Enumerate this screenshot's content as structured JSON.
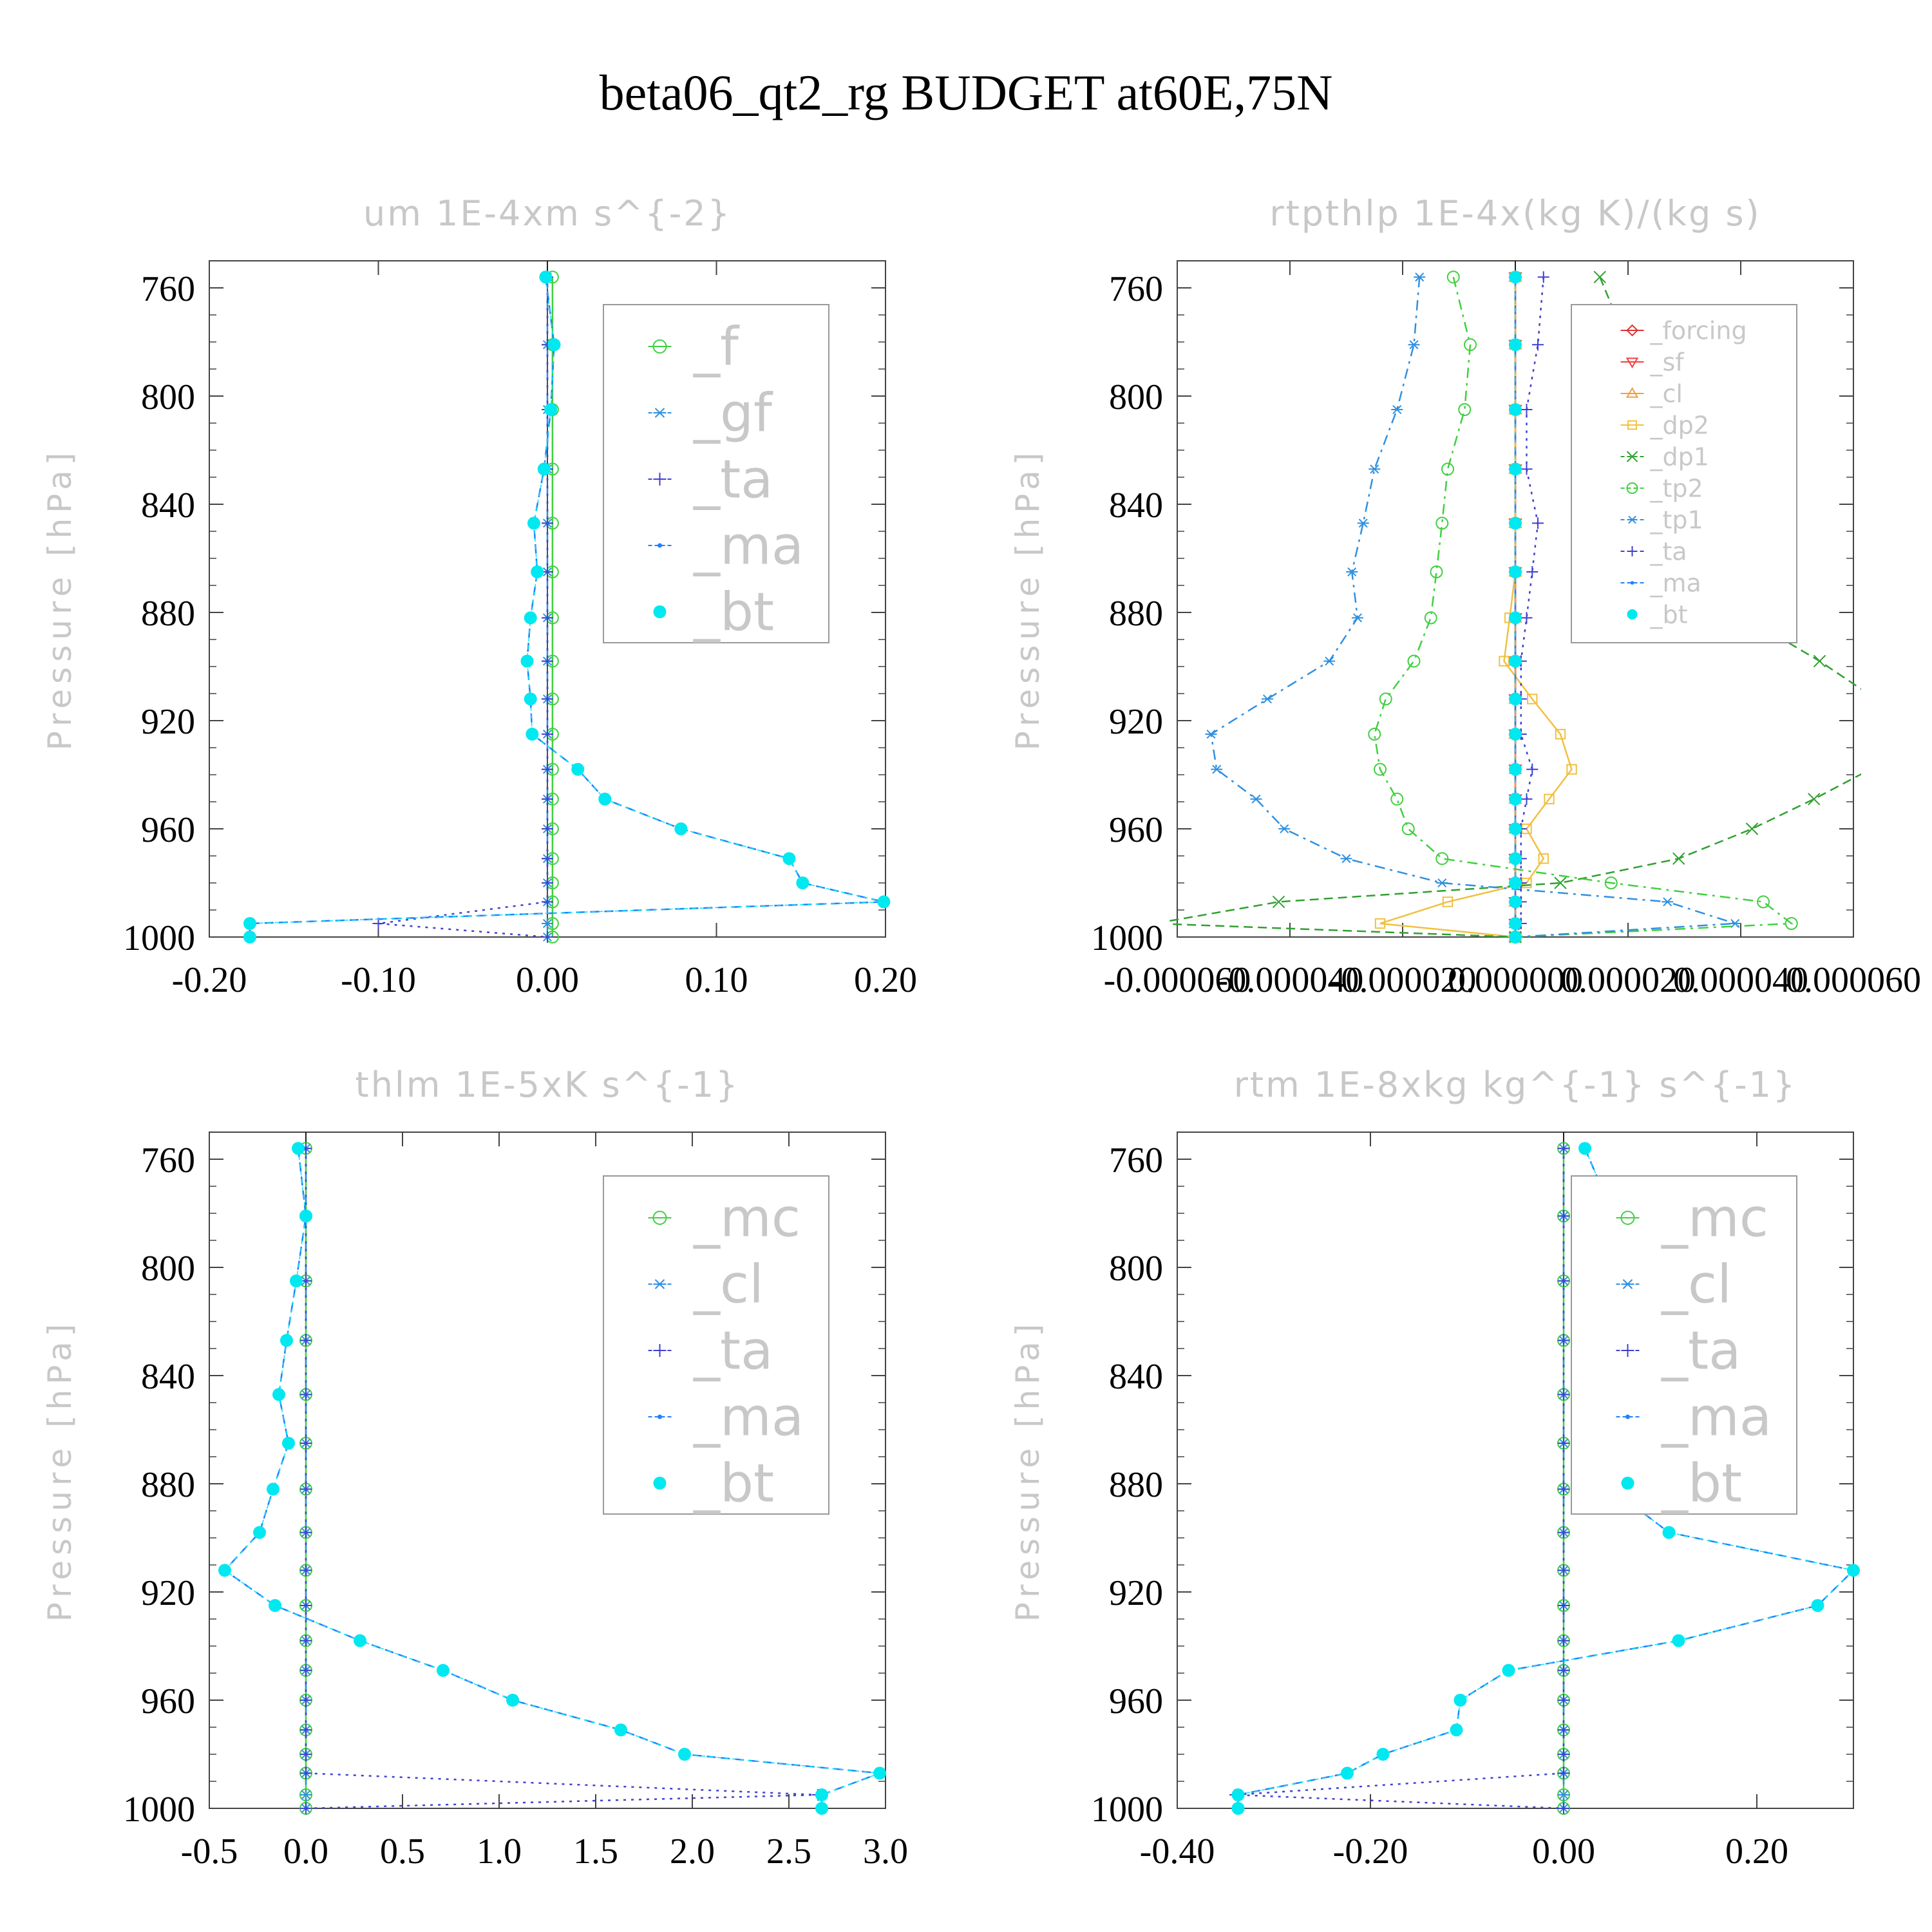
{
  "title": "beta06_qt2_rg  BUDGET at60E,75N",
  "chart_data": [
    {
      "type": "line",
      "title": "um  1E-4xm s^{-2}",
      "ylabel": "Pressure [hPa]",
      "yreversed": true,
      "ylim": [
        750,
        1000
      ],
      "yticks": [
        "760",
        "800",
        "840",
        "880",
        "920",
        "960",
        "1000"
      ],
      "xlim": [
        -0.2,
        0.2
      ],
      "xticks": [
        "-0.20",
        "-0.10",
        "0.00",
        "0.10",
        "0.20"
      ],
      "zero_line": true,
      "legend_position": "top-right",
      "legend_size": "large",
      "pressure": [
        756,
        781,
        805,
        827,
        847,
        865,
        882,
        898,
        912,
        925,
        938,
        949,
        960,
        971,
        980,
        987,
        995,
        1000
      ],
      "series": [
        {
          "name": "_f",
          "color": "#40d040",
          "marker": "circle-open",
          "dash": "solid",
          "values": [
            0.003,
            0.003,
            0.003,
            0.003,
            0.003,
            0.003,
            0.003,
            0.003,
            0.003,
            0.003,
            0.003,
            0.003,
            0.003,
            0.003,
            0.003,
            0.003,
            0.003,
            0.003
          ]
        },
        {
          "name": "_gf",
          "color": "#3090e0",
          "marker": "asterisk",
          "dash": "dashdot",
          "values": [
            0.0,
            0.0,
            0.0,
            0.0,
            0.0,
            0.0,
            0.0,
            0.0,
            0.0,
            0.0,
            0.0,
            0.0,
            0.0,
            0.0,
            0.0,
            0.0,
            0.0,
            0.0
          ]
        },
        {
          "name": "_ta",
          "color": "#4040d0",
          "marker": "plus",
          "dash": "dotted",
          "values": [
            0.0,
            0.0,
            0.0,
            0.0,
            0.0,
            0.0,
            0.0,
            0.0,
            0.0,
            0.0,
            0.0,
            0.0,
            0.0,
            0.0,
            0.0,
            0.0,
            -0.1,
            0.0
          ]
        },
        {
          "name": "_ma",
          "color": "#2080ff",
          "marker": "dot",
          "dash": "dashed",
          "values": [
            -0.001,
            0.004,
            0.002,
            -0.002,
            -0.008,
            -0.006,
            -0.01,
            -0.012,
            -0.01,
            -0.009,
            0.018,
            0.034,
            0.079,
            0.143,
            0.151,
            0.199,
            -0.176,
            -0.176
          ]
        },
        {
          "name": "_bt",
          "color": "#00e8f0",
          "marker": "filled",
          "dash": "none",
          "values": [
            -0.001,
            0.004,
            0.002,
            -0.002,
            -0.008,
            -0.006,
            -0.01,
            -0.012,
            -0.01,
            -0.009,
            0.018,
            0.034,
            0.079,
            0.143,
            0.151,
            0.199,
            -0.176,
            -0.176
          ]
        }
      ]
    },
    {
      "type": "line",
      "title": "rtpthlp  1E-4x(kg K)/(kg s)",
      "ylabel": "Pressure [hPa]",
      "yreversed": true,
      "ylim": [
        750,
        1000
      ],
      "yticks": [
        "760",
        "800",
        "840",
        "880",
        "920",
        "960",
        "1000"
      ],
      "xlim": [
        -6e-05,
        6e-05
      ],
      "xticks": [
        "-0.000060",
        "-0.000040",
        "-0.000020",
        "0.000000",
        "0.000020",
        "0.000040",
        "0.000060"
      ],
      "zero_line": true,
      "legend_position": "top-right",
      "legend_size": "small",
      "pressure": [
        756,
        781,
        805,
        827,
        847,
        865,
        882,
        898,
        912,
        925,
        938,
        949,
        960,
        971,
        980,
        987,
        995,
        1000
      ],
      "series": [
        {
          "name": "_forcing",
          "color": "#e03030",
          "marker": "diamond",
          "dash": "solid",
          "values": [
            0,
            0,
            0,
            0,
            0,
            0,
            0,
            0,
            0,
            0,
            0,
            0,
            0,
            0,
            0,
            0,
            0,
            0
          ]
        },
        {
          "name": "_sf",
          "color": "#f04040",
          "marker": "triangle-down",
          "dash": "solid",
          "values": [
            0,
            0,
            0,
            0,
            0,
            0,
            0,
            0,
            0,
            0,
            0,
            0,
            0,
            0,
            0,
            0,
            0,
            0
          ]
        },
        {
          "name": "_cl",
          "color": "#f0a040",
          "marker": "triangle-up",
          "dash": "solid",
          "values": [
            0,
            0,
            0,
            0,
            0,
            0,
            0,
            0,
            0,
            0,
            0,
            0,
            0,
            0,
            0,
            0,
            0,
            0
          ]
        },
        {
          "name": "_dp2",
          "color": "#f0c040",
          "marker": "square",
          "dash": "solid",
          "values": [
            0,
            0,
            0,
            0,
            0,
            0,
            -1e-06,
            -2e-06,
            3e-06,
            8e-06,
            1e-05,
            6e-06,
            2e-06,
            5e-06,
            2e-06,
            -1.2e-05,
            -2.4e-05,
            0
          ]
        },
        {
          "name": "_dp1",
          "color": "#30a030",
          "marker": "x",
          "dash": "dashed",
          "values": [
            1.5e-05,
            2e-05,
            2.3e-05,
            3.1e-05,
            3.3e-05,
            3.6e-05,
            4.1e-05,
            5.4e-05,
            6.4e-05,
            6.8e-05,
            6.3e-05,
            5.3e-05,
            4.2e-05,
            2.9e-05,
            8e-06,
            -4.2e-05,
            -6.4e-05,
            0
          ]
        },
        {
          "name": "_tp2",
          "color": "#40d040",
          "marker": "circle-open",
          "dash": "dashdot",
          "values": [
            -1.1e-05,
            -8e-06,
            -9e-06,
            -1.2e-05,
            -1.3e-05,
            -1.4e-05,
            -1.5e-05,
            -1.8e-05,
            -2.3e-05,
            -2.5e-05,
            -2.4e-05,
            -2.1e-05,
            -1.9e-05,
            -1.3e-05,
            1.7e-05,
            4.4e-05,
            4.9e-05,
            0
          ]
        },
        {
          "name": "_tp1",
          "color": "#3090e0",
          "marker": "asterisk",
          "dash": "dashdot",
          "values": [
            -1.7e-05,
            -1.8e-05,
            -2.1e-05,
            -2.5e-05,
            -2.7e-05,
            -2.9e-05,
            -2.8e-05,
            -3.3e-05,
            -4.4e-05,
            -5.4e-05,
            -5.3e-05,
            -4.6e-05,
            -4.1e-05,
            -3e-05,
            -1.3e-05,
            2.7e-05,
            3.9e-05,
            0
          ]
        },
        {
          "name": "_ta",
          "color": "#4040d0",
          "marker": "plus",
          "dash": "dotted",
          "values": [
            5e-06,
            4e-06,
            2e-06,
            2e-06,
            4e-06,
            3e-06,
            2e-06,
            1e-06,
            1e-06,
            1e-06,
            3e-06,
            2e-06,
            1e-06,
            1e-06,
            1e-06,
            1e-06,
            1e-06,
            0
          ]
        },
        {
          "name": "_ma",
          "color": "#2080ff",
          "marker": "dot",
          "dash": "dashed",
          "values": [
            0,
            0,
            0,
            0,
            0,
            0,
            0,
            0,
            0,
            0,
            0,
            0,
            0,
            0,
            0,
            0,
            0,
            0
          ]
        },
        {
          "name": "_bt",
          "color": "#00e8f0",
          "marker": "filled",
          "dash": "none",
          "values": [
            0,
            0,
            0,
            0,
            0,
            0,
            0,
            0,
            0,
            0,
            0,
            0,
            0,
            0,
            0,
            0,
            0,
            0
          ]
        }
      ]
    },
    {
      "type": "line",
      "title": "thlm  1E-5xK s^{-1}",
      "ylabel": "Pressure [hPa]",
      "yreversed": true,
      "ylim": [
        750,
        1000
      ],
      "yticks": [
        "760",
        "800",
        "840",
        "880",
        "920",
        "960",
        "1000"
      ],
      "xlim": [
        -0.5,
        3.0
      ],
      "xticks": [
        "-0.5",
        "0.0",
        "0.5",
        "1.0",
        "1.5",
        "2.0",
        "2.5",
        "3.0"
      ],
      "zero_line": true,
      "legend_position": "top-right",
      "legend_size": "large",
      "pressure": [
        756,
        781,
        805,
        827,
        847,
        865,
        882,
        898,
        912,
        925,
        938,
        949,
        960,
        971,
        980,
        987,
        995,
        1000
      ],
      "series": [
        {
          "name": "_mc",
          "color": "#40d040",
          "marker": "circle-open",
          "dash": "solid",
          "values": [
            0,
            0,
            0,
            0,
            0,
            0,
            0,
            0,
            0,
            0,
            0,
            0,
            0,
            0,
            0,
            0,
            0,
            0
          ]
        },
        {
          "name": "_cl",
          "color": "#3090e0",
          "marker": "asterisk",
          "dash": "dashdot",
          "values": [
            0,
            0,
            0,
            0,
            0,
            0,
            0,
            0,
            0,
            0,
            0,
            0,
            0,
            0,
            0,
            0,
            0,
            0
          ]
        },
        {
          "name": "_ta",
          "color": "#4040d0",
          "marker": "plus",
          "dash": "dotted",
          "values": [
            0,
            0,
            0,
            0,
            0,
            0,
            0,
            0,
            0,
            0,
            0,
            0,
            0,
            0,
            0,
            0,
            2.65,
            0
          ]
        },
        {
          "name": "_ma",
          "color": "#2080ff",
          "marker": "dot",
          "dash": "dashed",
          "values": [
            -0.04,
            0.0,
            -0.05,
            -0.1,
            -0.14,
            -0.09,
            -0.17,
            -0.24,
            -0.42,
            -0.16,
            0.28,
            0.71,
            1.07,
            1.63,
            1.96,
            2.97,
            2.67,
            2.67
          ]
        },
        {
          "name": "_bt",
          "color": "#00e8f0",
          "marker": "filled",
          "dash": "none",
          "values": [
            -0.04,
            0.0,
            -0.05,
            -0.1,
            -0.14,
            -0.09,
            -0.17,
            -0.24,
            -0.42,
            -0.16,
            0.28,
            0.71,
            1.07,
            1.63,
            1.96,
            2.97,
            2.67,
            2.67
          ]
        }
      ]
    },
    {
      "type": "line",
      "title": "rtm  1E-8xkg kg^{-1} s^{-1}",
      "ylabel": "Pressure [hPa]",
      "yreversed": true,
      "ylim": [
        750,
        1000
      ],
      "yticks": [
        "760",
        "800",
        "840",
        "880",
        "920",
        "960",
        "1000"
      ],
      "xlim": [
        -0.4,
        0.3
      ],
      "xticks": [
        "-0.40",
        "-0.20",
        "0.00",
        "0.20"
      ],
      "zero_line": true,
      "legend_position": "top-right",
      "legend_size": "large",
      "pressure": [
        756,
        781,
        805,
        827,
        847,
        865,
        882,
        898,
        912,
        925,
        938,
        949,
        960,
        971,
        980,
        987,
        995,
        1000
      ],
      "series": [
        {
          "name": "_mc",
          "color": "#40d040",
          "marker": "circle-open",
          "dash": "solid",
          "values": [
            0,
            0,
            0,
            0,
            0,
            0,
            0,
            0,
            0,
            0,
            0,
            0,
            0,
            0,
            0,
            0,
            0,
            0
          ]
        },
        {
          "name": "_cl",
          "color": "#3090e0",
          "marker": "asterisk",
          "dash": "dashdot",
          "values": [
            0,
            0,
            0,
            0,
            0,
            0,
            0,
            0,
            0,
            0,
            0,
            0,
            0,
            0,
            0,
            0,
            0,
            0
          ]
        },
        {
          "name": "_ta",
          "color": "#4040d0",
          "marker": "plus",
          "dash": "dotted",
          "values": [
            0,
            0,
            0,
            0,
            0,
            0,
            0,
            0,
            0,
            0,
            0,
            0,
            0,
            0,
            0,
            0,
            -0.34,
            0
          ]
        },
        {
          "name": "_ma",
          "color": "#2080ff",
          "marker": "dot",
          "dash": "dashed",
          "values": [
            0.022,
            0.052,
            0.06,
            0.11,
            0.082,
            0.043,
            0.05,
            0.109,
            0.3,
            0.263,
            0.119,
            -0.057,
            -0.107,
            -0.111,
            -0.187,
            -0.224,
            -0.337,
            -0.337
          ]
        },
        {
          "name": "_bt",
          "color": "#00e8f0",
          "marker": "filled",
          "dash": "none",
          "values": [
            0.022,
            0.052,
            0.06,
            0.11,
            0.082,
            0.043,
            0.05,
            0.109,
            0.3,
            0.263,
            0.119,
            -0.057,
            -0.107,
            -0.111,
            -0.187,
            -0.224,
            -0.337,
            -0.337
          ]
        }
      ]
    }
  ]
}
